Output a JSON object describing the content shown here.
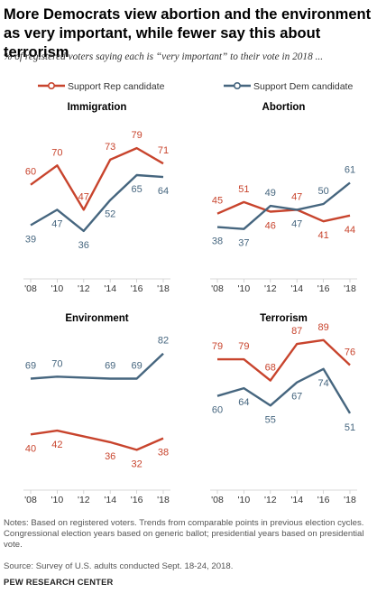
{
  "title": "More Democrats view abortion and the environment as very important, while fewer say this about terrorism",
  "subtitle": "% of registered voters saying each is “very important” to their vote in 2018 ...",
  "colors": {
    "rep": "#c8442d",
    "dem": "#46667f",
    "axis": "#cccccc",
    "text": "#000000"
  },
  "legend": {
    "rep": "Support Rep candidate",
    "dem": "Support Dem candidate"
  },
  "chart_data": {
    "type": "line",
    "x_labels": [
      "'08",
      "'10",
      "'12",
      "'14",
      "'16",
      "'18"
    ],
    "panels": [
      {
        "title": "Immigration",
        "series": [
          {
            "name": "Support Rep candidate",
            "values": [
              60,
              70,
              47,
              73,
              79,
              71
            ]
          },
          {
            "name": "Support Dem candidate",
            "values": [
              39,
              47,
              36,
              52,
              65,
              64
            ]
          }
        ]
      },
      {
        "title": "Abortion",
        "series": [
          {
            "name": "Support Rep candidate",
            "values": [
              45,
              51,
              46,
              47,
              41,
              44
            ]
          },
          {
            "name": "Support Dem candidate",
            "values": [
              38,
              37,
              49,
              47,
              50,
              61
            ]
          }
        ]
      },
      {
        "title": "Environment",
        "series": [
          {
            "name": "Support Rep candidate",
            "values": [
              40,
              42,
              null,
              36,
              32,
              38
            ]
          },
          {
            "name": "Support Dem candidate",
            "values": [
              69,
              70,
              null,
              69,
              69,
              82
            ]
          }
        ]
      },
      {
        "title": "Terrorism",
        "series": [
          {
            "name": "Support Rep candidate",
            "values": [
              79,
              79,
              68,
              87,
              89,
              76
            ]
          },
          {
            "name": "Support Dem candidate",
            "values": [
              60,
              64,
              55,
              67,
              74,
              51
            ]
          }
        ]
      }
    ]
  },
  "notes": [
    "Notes: Based on registered voters. Trends from comparable points in previous election cycles. Congressional election years based on generic ballot; presidential years based on presidential vote."
  ],
  "source": "Source: Survey of U.S. adults conducted Sept. 18-24, 2018.",
  "brand": "PEW RESEARCH CENTER"
}
